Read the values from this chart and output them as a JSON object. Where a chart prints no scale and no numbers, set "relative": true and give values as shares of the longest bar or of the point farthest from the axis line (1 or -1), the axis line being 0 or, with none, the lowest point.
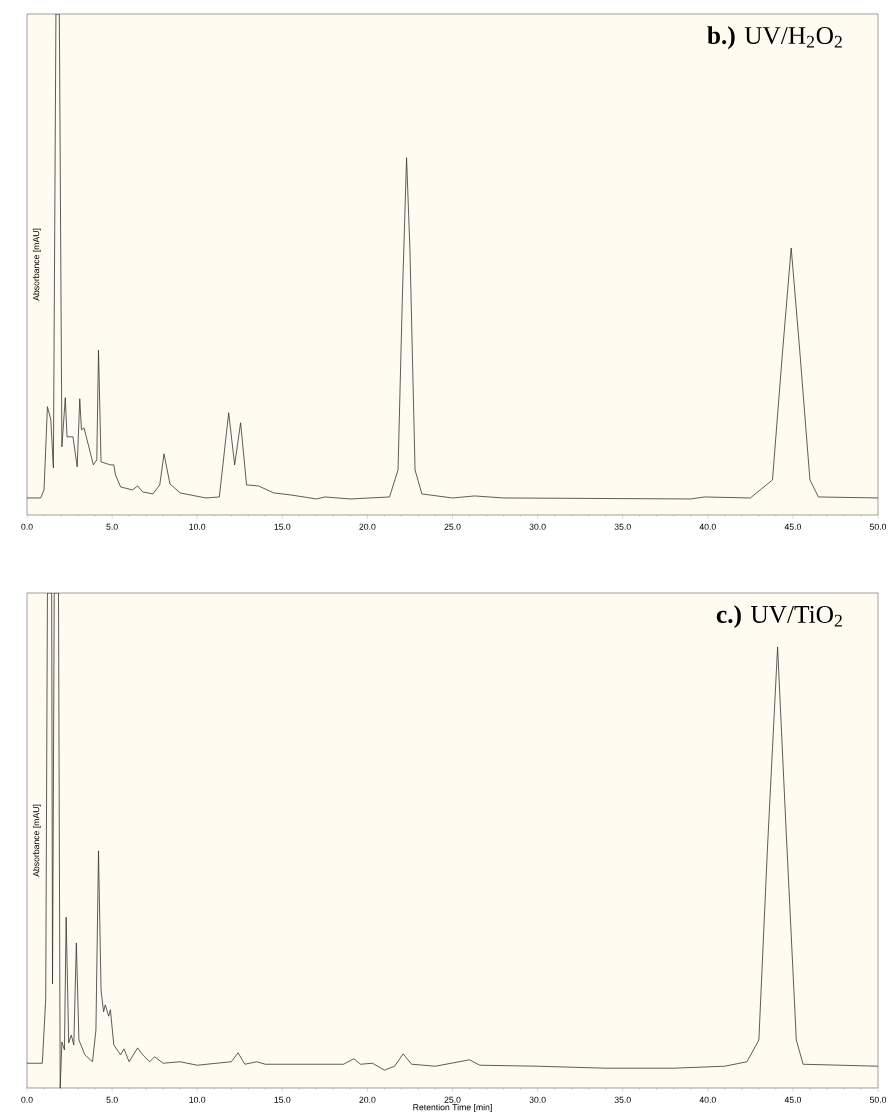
{
  "chart_data": [
    {
      "type": "line",
      "title": "**b.)** UV/H$_{2}$O$_{2}$",
      "ylabel": "Absorbance [mAU]",
      "relative": true,
      "xlim": [
        0,
        50
      ],
      "xticks": [
        {
          "value": 0,
          "label": "0.0"
        },
        {
          "value": 5,
          "label": "5.0"
        },
        {
          "value": 10,
          "label": "10.0"
        },
        {
          "value": 15,
          "label": "15.0"
        },
        {
          "value": 20,
          "label": "20.0"
        },
        {
          "value": 25,
          "label": "25.0"
        },
        {
          "value": 30,
          "label": "30.0"
        },
        {
          "value": 35,
          "label": "35.0"
        },
        {
          "value": 40,
          "label": "40.0"
        },
        {
          "value": 45,
          "label": "45.0"
        },
        {
          "value": 50,
          "label": "50.0"
        }
      ],
      "series": [
        {
          "color": "#333333",
          "x": [
            0,
            0.8,
            1.0,
            1.2,
            1.4,
            1.55,
            1.7,
            1.9,
            2.05,
            2.25,
            2.35,
            2.7,
            2.95,
            3.1,
            3.2,
            3.35,
            3.9,
            4.1,
            4.2,
            4.35,
            4.9,
            5.1,
            5.2,
            5.5,
            6.2,
            6.5,
            6.8,
            7.4,
            7.8,
            8.05,
            8.4,
            9.0,
            10.5,
            11.3,
            11.85,
            12.2,
            12.55,
            12.9,
            13.6,
            14.5,
            15.5,
            17.0,
            17.5,
            19.0,
            21.3,
            21.8,
            22.05,
            22.3,
            22.5,
            22.8,
            23.2,
            25.0,
            26.3,
            28.0,
            39.0,
            39.8,
            42.5,
            43.8,
            44.4,
            44.9,
            45.4,
            46.0,
            46.5,
            50
          ],
          "values": [
            0.034,
            0.034,
            0.05,
            0.216,
            0.19,
            0.094,
            1.0,
            1.0,
            0.136,
            0.234,
            0.156,
            0.156,
            0.096,
            0.232,
            0.17,
            0.174,
            0.1,
            0.11,
            0.329,
            0.106,
            0.1,
            0.1,
            0.08,
            0.056,
            0.05,
            0.058,
            0.046,
            0.042,
            0.06,
            0.122,
            0.062,
            0.044,
            0.034,
            0.036,
            0.204,
            0.1,
            0.184,
            0.06,
            0.058,
            0.044,
            0.04,
            0.032,
            0.036,
            0.032,
            0.036,
            0.09,
            0.429,
            0.713,
            0.529,
            0.09,
            0.042,
            0.034,
            0.038,
            0.034,
            0.032,
            0.036,
            0.034,
            0.07,
            0.329,
            0.533,
            0.329,
            0.07,
            0.036,
            0.034
          ]
        }
      ]
    },
    {
      "type": "line",
      "title": "**c.)** UV/TiO$_{2}$",
      "xlabel": "Retention Time [min]",
      "ylabel": "Absorbance [mAU]",
      "relative": true,
      "xlim": [
        0,
        50
      ],
      "xticks": [
        {
          "value": 0,
          "label": "0.0"
        },
        {
          "value": 5,
          "label": "5.0"
        },
        {
          "value": 10,
          "label": "10.0"
        },
        {
          "value": 15,
          "label": "15.0"
        },
        {
          "value": 20,
          "label": "20.0"
        },
        {
          "value": 25,
          "label": "25.0"
        },
        {
          "value": 30,
          "label": "30.0"
        },
        {
          "value": 35,
          "label": "35.0"
        },
        {
          "value": 40,
          "label": "40.0"
        },
        {
          "value": 45,
          "label": "45.0"
        },
        {
          "value": 50,
          "label": "50.0"
        }
      ],
      "series": [
        {
          "color": "#333333",
          "x": [
            0,
            0.9,
            1.1,
            1.2,
            1.45,
            1.5,
            1.6,
            1.85,
            1.95,
            2.05,
            2.2,
            2.3,
            2.45,
            2.6,
            2.75,
            2.9,
            3.05,
            3.4,
            3.85,
            4.05,
            4.2,
            4.35,
            4.5,
            4.6,
            4.8,
            4.9,
            5.1,
            5.5,
            5.7,
            6.0,
            6.5,
            6.8,
            7.2,
            7.5,
            8.0,
            9.0,
            10.0,
            12.0,
            12.4,
            12.8,
            13.5,
            14.0,
            18.6,
            19.2,
            19.6,
            20.3,
            21.0,
            21.6,
            22.1,
            22.6,
            24.0,
            26.0,
            26.6,
            30.0,
            34.0,
            38.0,
            41.0,
            42.3,
            43.0,
            43.5,
            44.1,
            44.6,
            45.2,
            45.6,
            50
          ],
          "values": [
            0.05,
            0.05,
            0.18,
            1.0,
            1.0,
            0.21,
            1.0,
            1.0,
            0.0,
            0.093,
            0.077,
            0.345,
            0.091,
            0.107,
            0.087,
            0.293,
            0.097,
            0.067,
            0.053,
            0.117,
            0.479,
            0.198,
            0.154,
            0.168,
            0.145,
            0.158,
            0.087,
            0.067,
            0.079,
            0.053,
            0.081,
            0.067,
            0.053,
            0.063,
            0.05,
            0.053,
            0.046,
            0.053,
            0.071,
            0.048,
            0.053,
            0.048,
            0.048,
            0.059,
            0.048,
            0.05,
            0.036,
            0.044,
            0.069,
            0.048,
            0.044,
            0.057,
            0.046,
            0.044,
            0.04,
            0.04,
            0.044,
            0.053,
            0.097,
            0.48,
            0.891,
            0.521,
            0.097,
            0.048,
            0.044
          ]
        }
      ]
    }
  ]
}
